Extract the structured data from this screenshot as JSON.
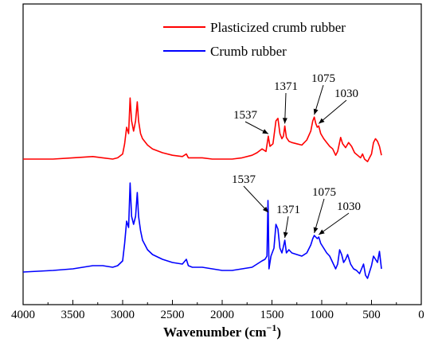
{
  "chart_data": {
    "type": "line",
    "xlabel": "Wavenumber (cm",
    "xlabel_sup": "−1",
    "xlabel_suffix": ")",
    "ylabel": "",
    "xlim": [
      4000,
      0
    ],
    "x_reversed": true,
    "x_ticks": [
      "4000",
      "3500",
      "3000",
      "2500",
      "2000",
      "1500",
      "1000",
      "500",
      "0"
    ],
    "x_tick_values": [
      4000,
      3500,
      3000,
      2500,
      2000,
      1500,
      1000,
      500,
      0
    ],
    "y_axis_labels": false,
    "grid": false,
    "legend_position": "top-right",
    "series": [
      {
        "name": "Plasticized crumb rubber",
        "color": "#ff0000",
        "points": [
          [
            4000,
            0.1
          ],
          [
            3700,
            0.1
          ],
          [
            3500,
            0.11
          ],
          [
            3300,
            0.12
          ],
          [
            3200,
            0.11
          ],
          [
            3100,
            0.1
          ],
          [
            3050,
            0.11
          ],
          [
            3000,
            0.14
          ],
          [
            2980,
            0.22
          ],
          [
            2960,
            0.35
          ],
          [
            2940,
            0.3
          ],
          [
            2925,
            0.58
          ],
          [
            2910,
            0.4
          ],
          [
            2890,
            0.32
          ],
          [
            2870,
            0.4
          ],
          [
            2853,
            0.55
          ],
          [
            2840,
            0.4
          ],
          [
            2820,
            0.3
          ],
          [
            2800,
            0.26
          ],
          [
            2750,
            0.21
          ],
          [
            2700,
            0.18
          ],
          [
            2600,
            0.15
          ],
          [
            2500,
            0.13
          ],
          [
            2400,
            0.12
          ],
          [
            2360,
            0.14
          ],
          [
            2340,
            0.11
          ],
          [
            2300,
            0.11
          ],
          [
            2200,
            0.11
          ],
          [
            2100,
            0.1
          ],
          [
            2000,
            0.1
          ],
          [
            1900,
            0.1
          ],
          [
            1800,
            0.11
          ],
          [
            1700,
            0.13
          ],
          [
            1650,
            0.15
          ],
          [
            1600,
            0.18
          ],
          [
            1560,
            0.16
          ],
          [
            1537,
            0.28
          ],
          [
            1520,
            0.2
          ],
          [
            1490,
            0.22
          ],
          [
            1460,
            0.4
          ],
          [
            1440,
            0.42
          ],
          [
            1420,
            0.3
          ],
          [
            1400,
            0.26
          ],
          [
            1385,
            0.28
          ],
          [
            1371,
            0.36
          ],
          [
            1355,
            0.27
          ],
          [
            1330,
            0.24
          ],
          [
            1300,
            0.23
          ],
          [
            1250,
            0.22
          ],
          [
            1200,
            0.21
          ],
          [
            1150,
            0.25
          ],
          [
            1110,
            0.32
          ],
          [
            1090,
            0.4
          ],
          [
            1075,
            0.43
          ],
          [
            1060,
            0.38
          ],
          [
            1045,
            0.35
          ],
          [
            1030,
            0.36
          ],
          [
            1010,
            0.3
          ],
          [
            980,
            0.26
          ],
          [
            950,
            0.23
          ],
          [
            920,
            0.2
          ],
          [
            890,
            0.18
          ],
          [
            860,
            0.13
          ],
          [
            840,
            0.16
          ],
          [
            810,
            0.27
          ],
          [
            790,
            0.22
          ],
          [
            760,
            0.19
          ],
          [
            730,
            0.23
          ],
          [
            700,
            0.2
          ],
          [
            670,
            0.15
          ],
          [
            640,
            0.13
          ],
          [
            610,
            0.11
          ],
          [
            590,
            0.14
          ],
          [
            570,
            0.1
          ],
          [
            540,
            0.08
          ],
          [
            520,
            0.11
          ],
          [
            500,
            0.14
          ],
          [
            480,
            0.23
          ],
          [
            460,
            0.26
          ],
          [
            440,
            0.24
          ],
          [
            420,
            0.2
          ],
          [
            400,
            0.13
          ]
        ]
      },
      {
        "name": "Crumb rubber",
        "color": "#0000ff",
        "points": [
          [
            4000,
            0.1
          ],
          [
            3700,
            0.11
          ],
          [
            3500,
            0.12
          ],
          [
            3400,
            0.13
          ],
          [
            3300,
            0.14
          ],
          [
            3200,
            0.14
          ],
          [
            3100,
            0.13
          ],
          [
            3050,
            0.14
          ],
          [
            3000,
            0.17
          ],
          [
            2980,
            0.28
          ],
          [
            2960,
            0.42
          ],
          [
            2940,
            0.38
          ],
          [
            2925,
            0.66
          ],
          [
            2910,
            0.45
          ],
          [
            2890,
            0.4
          ],
          [
            2870,
            0.45
          ],
          [
            2853,
            0.6
          ],
          [
            2840,
            0.45
          ],
          [
            2820,
            0.36
          ],
          [
            2800,
            0.3
          ],
          [
            2750,
            0.24
          ],
          [
            2700,
            0.21
          ],
          [
            2600,
            0.18
          ],
          [
            2500,
            0.16
          ],
          [
            2400,
            0.15
          ],
          [
            2360,
            0.18
          ],
          [
            2340,
            0.14
          ],
          [
            2300,
            0.13
          ],
          [
            2200,
            0.13
          ],
          [
            2100,
            0.12
          ],
          [
            2000,
            0.11
          ],
          [
            1900,
            0.11
          ],
          [
            1800,
            0.12
          ],
          [
            1700,
            0.13
          ],
          [
            1650,
            0.15
          ],
          [
            1600,
            0.17
          ],
          [
            1570,
            0.18
          ],
          [
            1550,
            0.2
          ],
          [
            1540,
            0.55
          ],
          [
            1537,
            0.46
          ],
          [
            1530,
            0.12
          ],
          [
            1510,
            0.2
          ],
          [
            1480,
            0.25
          ],
          [
            1460,
            0.4
          ],
          [
            1440,
            0.37
          ],
          [
            1420,
            0.25
          ],
          [
            1400,
            0.22
          ],
          [
            1385,
            0.26
          ],
          [
            1371,
            0.3
          ],
          [
            1355,
            0.22
          ],
          [
            1330,
            0.24
          ],
          [
            1300,
            0.22
          ],
          [
            1250,
            0.21
          ],
          [
            1200,
            0.2
          ],
          [
            1150,
            0.22
          ],
          [
            1110,
            0.27
          ],
          [
            1090,
            0.31
          ],
          [
            1075,
            0.33
          ],
          [
            1060,
            0.32
          ],
          [
            1045,
            0.31
          ],
          [
            1030,
            0.32
          ],
          [
            1010,
            0.28
          ],
          [
            980,
            0.25
          ],
          [
            950,
            0.22
          ],
          [
            920,
            0.2
          ],
          [
            890,
            0.16
          ],
          [
            860,
            0.12
          ],
          [
            840,
            0.15
          ],
          [
            820,
            0.24
          ],
          [
            800,
            0.21
          ],
          [
            780,
            0.16
          ],
          [
            760,
            0.18
          ],
          [
            740,
            0.21
          ],
          [
            710,
            0.15
          ],
          [
            680,
            0.12
          ],
          [
            650,
            0.11
          ],
          [
            620,
            0.09
          ],
          [
            600,
            0.12
          ],
          [
            580,
            0.15
          ],
          [
            560,
            0.08
          ],
          [
            540,
            0.06
          ],
          [
            520,
            0.1
          ],
          [
            500,
            0.14
          ],
          [
            480,
            0.2
          ],
          [
            460,
            0.18
          ],
          [
            440,
            0.16
          ],
          [
            420,
            0.23
          ],
          [
            400,
            0.12
          ]
        ]
      }
    ],
    "annotations": [
      {
        "label": "1537",
        "series": 0,
        "x": 1537
      },
      {
        "label": "1371",
        "series": 0,
        "x": 1371
      },
      {
        "label": "1075",
        "series": 0,
        "x": 1075
      },
      {
        "label": "1030",
        "series": 0,
        "x": 1030
      },
      {
        "label": "1537",
        "series": 1,
        "x": 1537
      },
      {
        "label": "1371",
        "series": 1,
        "x": 1371
      },
      {
        "label": "1075",
        "series": 1,
        "x": 1075
      },
      {
        "label": "1030",
        "series": 1,
        "x": 1030
      }
    ]
  }
}
